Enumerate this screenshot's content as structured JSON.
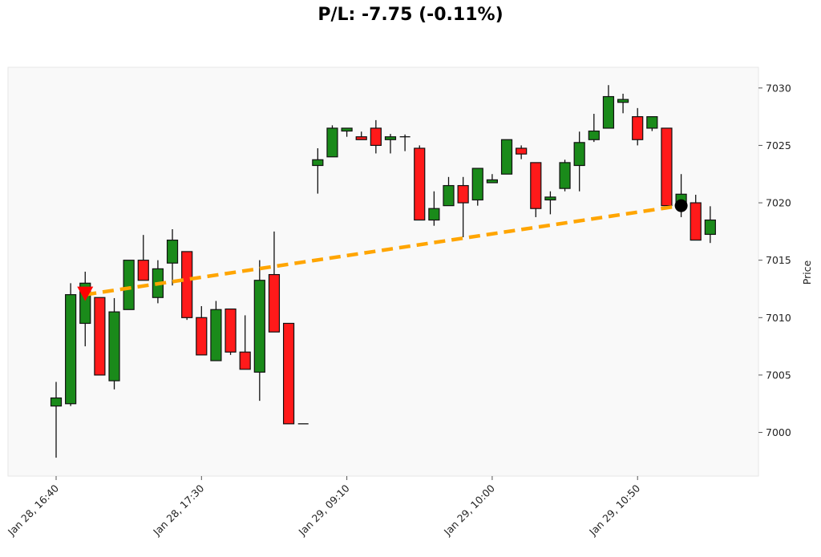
{
  "title": "P/L: -7.75 (-0.11%)",
  "chart_data": {
    "type": "candlestick",
    "title": "P/L: -7.75 (-0.11%)",
    "ylabel": "Price",
    "xlabel": "",
    "ylim": [
      6996.2,
      7031.8
    ],
    "yticks": [
      7000,
      7005,
      7010,
      7015,
      7020,
      7025,
      7030
    ],
    "xtick_labels": [
      {
        "index": 0,
        "label": "Jan 28, 16:40"
      },
      {
        "index": 10,
        "label": "Jan 28, 17:30"
      },
      {
        "index": 20,
        "label": "Jan 29, 09:10"
      },
      {
        "index": 30,
        "label": "Jan 29, 10:00"
      },
      {
        "index": 40,
        "label": "Jan 29, 10:50"
      }
    ],
    "grid": false,
    "colors": {
      "up": "#1a8a1a",
      "down": "#ff1a1a",
      "trade_line": "#ffa500",
      "entry_marker": "#ff0000",
      "exit_marker": "#000000",
      "background": "#f9f9f9"
    },
    "candles": [
      {
        "time": "Jan 28, 16:40",
        "o": 7002.3,
        "h": 7004.4,
        "l": 6997.8,
        "c": 7003.0
      },
      {
        "time": "Jan 28, 16:45",
        "o": 7002.5,
        "h": 7013.0,
        "l": 7002.3,
        "c": 7012.0
      },
      {
        "time": "Jan 28, 16:50",
        "o": 7009.5,
        "h": 7014.0,
        "l": 7007.5,
        "c": 7013.0
      },
      {
        "time": "Jan 28, 16:55",
        "o": 7011.75,
        "h": 7011.75,
        "l": 7005.0,
        "c": 7005.0
      },
      {
        "time": "Jan 28, 17:00",
        "o": 7004.5,
        "h": 7011.7,
        "l": 7003.75,
        "c": 7010.5
      },
      {
        "time": "Jan 28, 17:05",
        "o": 7010.7,
        "h": 7015.0,
        "l": 7010.7,
        "c": 7015.0
      },
      {
        "time": "Jan 28, 17:10",
        "o": 7015.0,
        "h": 7017.2,
        "l": 7013.25,
        "c": 7013.25
      },
      {
        "time": "Jan 28, 17:15",
        "o": 7011.75,
        "h": 7015.0,
        "l": 7011.25,
        "c": 7014.25
      },
      {
        "time": "Jan 28, 17:20",
        "o": 7014.75,
        "h": 7017.7,
        "l": 7012.8,
        "c": 7016.75
      },
      {
        "time": "Jan 28, 17:25",
        "o": 7015.75,
        "h": 7015.75,
        "l": 7009.8,
        "c": 7010.0
      },
      {
        "time": "Jan 28, 17:30",
        "o": 7010.0,
        "h": 7011.0,
        "l": 7006.75,
        "c": 7006.75
      },
      {
        "time": "Jan 28, 17:35",
        "o": 7006.25,
        "h": 7011.45,
        "l": 7006.25,
        "c": 7010.7
      },
      {
        "time": "Jan 28, 17:40",
        "o": 7010.75,
        "h": 7010.75,
        "l": 7006.75,
        "c": 7007.0
      },
      {
        "time": "Jan 28, 17:45",
        "o": 7007.0,
        "h": 7010.2,
        "l": 7005.5,
        "c": 7005.5
      },
      {
        "time": "Jan 28, 17:50",
        "o": 7005.25,
        "h": 7015.0,
        "l": 7002.75,
        "c": 7013.25
      },
      {
        "time": "Jan 28, 17:55",
        "o": 7013.75,
        "h": 7017.5,
        "l": 7008.75,
        "c": 7008.75
      },
      {
        "time": "Jan 28, 18:00",
        "o": 7009.5,
        "h": 7009.5,
        "l": 7000.75,
        "c": 7000.75
      },
      {
        "time": "Jan 28, 18:05",
        "o": 7000.75,
        "h": 7000.75,
        "l": 7000.75,
        "c": 7000.75
      },
      {
        "time": "Jan 29, 09:00",
        "o": 7023.25,
        "h": 7024.75,
        "l": 7020.8,
        "c": 7023.75
      },
      {
        "time": "Jan 29, 09:05",
        "o": 7024.0,
        "h": 7026.75,
        "l": 7024.0,
        "c": 7026.5
      },
      {
        "time": "Jan 29, 09:10",
        "o": 7026.25,
        "h": 7026.5,
        "l": 7025.75,
        "c": 7026.5
      },
      {
        "time": "Jan 29, 09:15",
        "o": 7025.75,
        "h": 7026.2,
        "l": 7025.5,
        "c": 7025.5
      },
      {
        "time": "Jan 29, 09:20",
        "o": 7026.5,
        "h": 7027.2,
        "l": 7024.3,
        "c": 7025.0
      },
      {
        "time": "Jan 29, 09:25",
        "o": 7025.5,
        "h": 7026.0,
        "l": 7024.3,
        "c": 7025.75
      },
      {
        "time": "Jan 29, 09:30",
        "o": 7025.75,
        "h": 7025.95,
        "l": 7024.5,
        "c": 7025.75
      },
      {
        "time": "Jan 29, 09:35",
        "o": 7024.75,
        "h": 7025.0,
        "l": 7018.5,
        "c": 7018.5
      },
      {
        "time": "Jan 29, 09:40",
        "o": 7018.5,
        "h": 7021.0,
        "l": 7018.0,
        "c": 7019.5
      },
      {
        "time": "Jan 29, 09:45",
        "o": 7019.75,
        "h": 7022.25,
        "l": 7019.75,
        "c": 7021.5
      },
      {
        "time": "Jan 29, 09:50",
        "o": 7021.5,
        "h": 7022.25,
        "l": 7017.0,
        "c": 7020.0
      },
      {
        "time": "Jan 29, 09:55",
        "o": 7020.25,
        "h": 7023.0,
        "l": 7019.75,
        "c": 7023.0
      },
      {
        "time": "Jan 29, 10:00",
        "o": 7021.75,
        "h": 7022.5,
        "l": 7021.75,
        "c": 7022.0
      },
      {
        "time": "Jan 29, 10:05",
        "o": 7022.5,
        "h": 7025.5,
        "l": 7022.5,
        "c": 7025.5
      },
      {
        "time": "Jan 29, 10:10",
        "o": 7024.75,
        "h": 7025.0,
        "l": 7023.8,
        "c": 7024.25
      },
      {
        "time": "Jan 29, 10:15",
        "o": 7023.5,
        "h": 7023.5,
        "l": 7018.75,
        "c": 7019.5
      },
      {
        "time": "Jan 29, 10:20",
        "o": 7020.25,
        "h": 7021.0,
        "l": 7019.0,
        "c": 7020.5
      },
      {
        "time": "Jan 29, 10:25",
        "o": 7021.25,
        "h": 7023.75,
        "l": 7021.0,
        "c": 7023.5
      },
      {
        "time": "Jan 29, 10:30",
        "o": 7023.25,
        "h": 7026.2,
        "l": 7021.0,
        "c": 7025.25
      },
      {
        "time": "Jan 29, 10:35",
        "o": 7025.5,
        "h": 7027.75,
        "l": 7025.3,
        "c": 7026.25
      },
      {
        "time": "Jan 29, 10:40",
        "o": 7026.5,
        "h": 7030.25,
        "l": 7026.5,
        "c": 7029.25
      },
      {
        "time": "Jan 29, 10:45",
        "o": 7028.75,
        "h": 7029.5,
        "l": 7027.8,
        "c": 7029.0
      },
      {
        "time": "Jan 29, 10:50",
        "o": 7027.5,
        "h": 7028.25,
        "l": 7025.0,
        "c": 7025.5
      },
      {
        "time": "Jan 29, 10:55",
        "o": 7026.5,
        "h": 7027.5,
        "l": 7026.25,
        "c": 7027.5
      },
      {
        "time": "Jan 29, 11:00",
        "o": 7026.5,
        "h": 7026.5,
        "l": 7019.75,
        "c": 7019.75
      },
      {
        "time": "Jan 29, 11:05",
        "o": 7020.0,
        "h": 7022.5,
        "l": 7018.75,
        "c": 7020.75
      },
      {
        "time": "Jan 29, 11:10",
        "o": 7020.0,
        "h": 7020.7,
        "l": 7016.75,
        "c": 7016.75
      },
      {
        "time": "Jan 29, 11:15",
        "o": 7017.25,
        "h": 7019.7,
        "l": 7016.5,
        "c": 7018.5
      }
    ],
    "trade": {
      "entry": {
        "index": 2,
        "price": 7012.0,
        "marker": "triangle-down"
      },
      "exit": {
        "index": 43,
        "price": 7019.75,
        "marker": "circle"
      }
    }
  }
}
